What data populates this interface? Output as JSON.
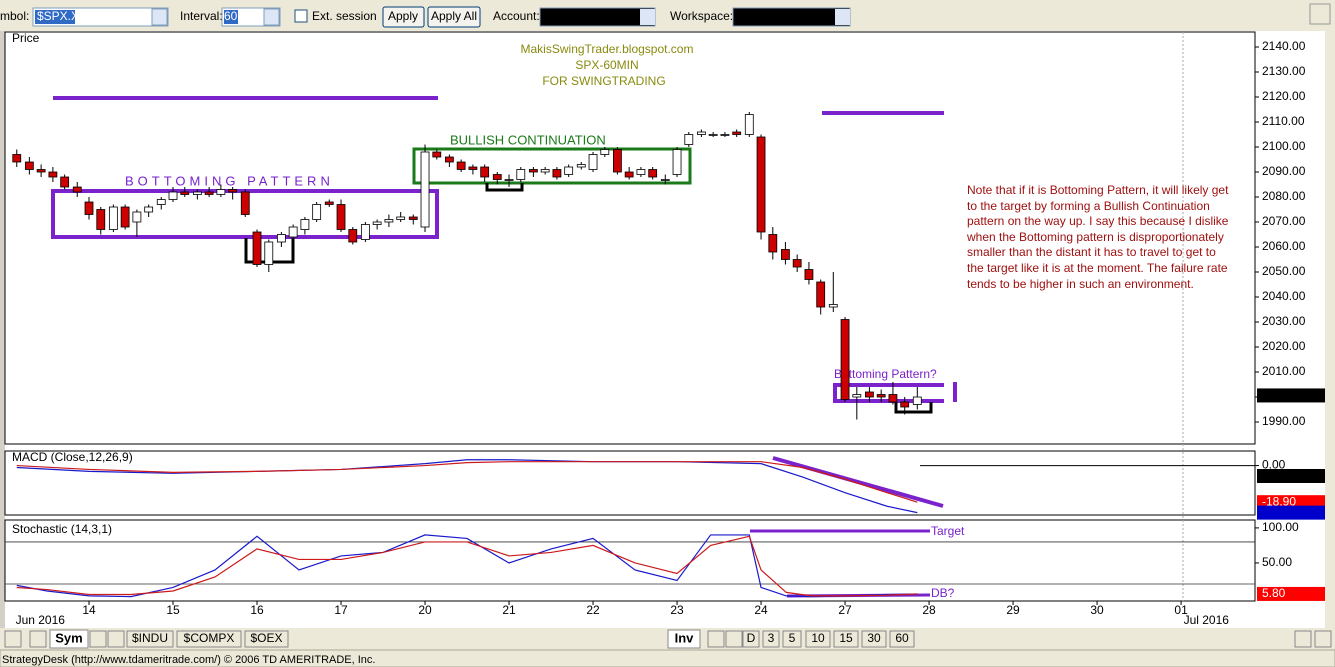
{
  "toolbar": {
    "symbol_label": "mbol:",
    "symbol": "$SPX.X",
    "interval_label": "Interval:",
    "interval": "60",
    "ext_session": "Ext. session",
    "apply": "Apply",
    "apply_all": "Apply All",
    "account_label": "Account:",
    "workspace_label": "Workspace:"
  },
  "chart_data": [
    {
      "type": "candlestick",
      "title": "Price",
      "x": [
        0.14,
        0.29,
        0.43,
        0.57,
        0.71,
        0.86,
        1,
        1.14,
        1.29,
        1.43,
        1.57,
        1.71,
        1.86,
        2,
        2.14,
        2.29,
        2.43,
        2.57,
        2.71,
        2.86,
        3,
        3.14,
        3.29,
        3.43,
        3.57,
        3.71,
        3.86,
        4,
        4.14,
        4.29,
        4.43,
        4.57,
        4.71,
        4.86,
        5,
        5.14,
        5.29,
        5.43,
        5.57,
        5.71,
        5.86,
        6,
        6.14,
        6.29,
        6.43,
        6.57,
        6.71,
        6.86,
        7,
        7.14,
        7.29,
        7.43,
        7.57,
        7.71,
        7.86,
        8,
        8.14,
        8.29,
        8.43,
        8.57,
        8.71,
        8.86,
        9,
        9.14,
        9.29,
        9.43,
        9.57,
        9.71,
        9.86,
        10,
        10.14,
        10.29,
        10.43,
        10.57,
        10.71,
        10.86
      ],
      "open": [
        2097,
        2094,
        2091,
        2090,
        2088,
        2084,
        2078,
        2075,
        2067,
        2076,
        2070,
        2074,
        2077,
        2079,
        2082,
        2081,
        2082,
        2081,
        2083,
        2082,
        2066,
        2053,
        2062,
        2064,
        2067,
        2071,
        2078,
        2077,
        2067,
        2063,
        2069,
        2070,
        2071,
        2072,
        2068,
        2098,
        2096,
        2094,
        2092,
        2092,
        2089,
        2087,
        2087,
        2091,
        2090,
        2091,
        2089,
        2092,
        2091,
        2097,
        2099,
        2090,
        2089,
        2091,
        2087,
        2089,
        2101,
        2105,
        2105,
        2105,
        2106,
        2105,
        2104,
        2065,
        2059,
        2055,
        2051,
        2046,
        2036,
        2031,
        2000,
        2002,
        2001,
        2001,
        1998,
        1997
      ],
      "high": [
        2099,
        2096,
        2093,
        2092,
        2089,
        2086,
        2080,
        2076,
        2077,
        2077,
        2075,
        2077,
        2080,
        2084,
        2084,
        2083,
        2084,
        2085,
        2084,
        2083,
        2067,
        2063,
        2066,
        2069,
        2072,
        2078,
        2079,
        2079,
        2068,
        2070,
        2071,
        2073,
        2074,
        2073,
        2101,
        2099,
        2097,
        2095,
        2093,
        2093,
        2090,
        2089,
        2092,
        2092,
        2092,
        2092,
        2093,
        2094,
        2098,
        2100,
        2100,
        2092,
        2092,
        2092,
        2089,
        2100,
        2106,
        2107,
        2106,
        2106,
        2107,
        2114,
        2105,
        2068,
        2062,
        2057,
        2054,
        2047,
        2050,
        2032,
        2004,
        2004,
        2003,
        2006,
        2000,
        2004
      ],
      "low": [
        2092,
        2089,
        2088,
        2086,
        2083,
        2080,
        2071,
        2065,
        2066,
        2067,
        2064,
        2072,
        2075,
        2078,
        2080,
        2079,
        2080,
        2080,
        2079,
        2072,
        2052,
        2050,
        2060,
        2062,
        2065,
        2070,
        2076,
        2066,
        2061,
        2062,
        2067,
        2068,
        2070,
        2069,
        2066,
        2095,
        2092,
        2090,
        2089,
        2086,
        2085,
        2084,
        2086,
        2088,
        2089,
        2087,
        2088,
        2091,
        2090,
        2096,
        2089,
        2087,
        2088,
        2087,
        2085,
        2088,
        2100,
        2104,
        2104,
        2104,
        2104,
        2104,
        2063,
        2055,
        2053,
        2050,
        2045,
        2033,
        2034,
        1998,
        1991,
        1998,
        1998,
        1997,
        1993,
        1995
      ],
      "close": [
        2094,
        2091,
        2090,
        2088,
        2084,
        2082,
        2073,
        2067,
        2076,
        2068,
        2074,
        2076,
        2079,
        2082,
        2081,
        2082,
        2081,
        2083,
        2082,
        2073,
        2053,
        2062,
        2065,
        2068,
        2071,
        2077,
        2077,
        2067,
        2062,
        2069,
        2070,
        2071,
        2072,
        2071,
        2098,
        2096,
        2094,
        2091,
        2091,
        2088,
        2087,
        2087,
        2091,
        2090,
        2091,
        2088,
        2092,
        2093,
        2097,
        2099,
        2090,
        2088,
        2091,
        2088,
        2087,
        2099,
        2105,
        2106,
        2105,
        2105,
        2105,
        2113,
        2066,
        2058,
        2055,
        2052,
        2047,
        2036,
        2037,
        1999,
        2001,
        2000,
        2000,
        1998,
        1996,
        2000
      ],
      "up_color": "#ffffff",
      "down_color": "#cc0000",
      "xlim": [
        0,
        14.88
      ],
      "xticks": [
        {
          "value": 1,
          "label": "14"
        },
        {
          "value": 2,
          "label": "15"
        },
        {
          "value": 3,
          "label": "16"
        },
        {
          "value": 4,
          "label": "17"
        },
        {
          "value": 5,
          "label": "20"
        },
        {
          "value": 6,
          "label": "21"
        },
        {
          "value": 7,
          "label": "22"
        },
        {
          "value": 8,
          "label": "23"
        },
        {
          "value": 9,
          "label": "24"
        },
        {
          "value": 10,
          "label": "27"
        },
        {
          "value": 11,
          "label": "28"
        },
        {
          "value": 12,
          "label": "29"
        },
        {
          "value": 13,
          "label": "30"
        },
        {
          "value": 14,
          "label": "01"
        }
      ],
      "month_labels": [
        {
          "value": 0.42,
          "label": "Jun 2016"
        },
        {
          "value": 14.3,
          "label": "Jul 2016"
        }
      ],
      "ylim": [
        1981.6,
        2145.6
      ],
      "yticks": [
        {
          "value": 1990,
          "label": "1990.00"
        },
        {
          "value": 2000,
          "label": "2000.00"
        },
        {
          "value": 2010,
          "label": "2010.00"
        },
        {
          "value": 2020,
          "label": "2020.00"
        },
        {
          "value": 2030,
          "label": "2030.00"
        },
        {
          "value": 2040,
          "label": "2040.00"
        },
        {
          "value": 2050,
          "label": "2050.00"
        },
        {
          "value": 2060,
          "label": "2060.00"
        },
        {
          "value": 2070,
          "label": "2070.00"
        },
        {
          "value": 2080,
          "label": "2080.00"
        },
        {
          "value": 2090,
          "label": "2090.00"
        },
        {
          "value": 2100,
          "label": "2100.00"
        },
        {
          "value": 2110,
          "label": "2110.00"
        },
        {
          "value": 2120,
          "label": "2120.00"
        },
        {
          "value": 2130,
          "label": "2130.00"
        },
        {
          "value": 2140,
          "label": "2140.00"
        }
      ],
      "badges": [
        {
          "value": 2000.62,
          "color": "#000000"
        }
      ],
      "annotations": {
        "watermark": [
          "MakisSwingTrader.blogspot.com",
          "SPX-60MIN",
          "FOR SWINGTRADING"
        ],
        "bullish": "BULLISH CONTINUATION",
        "bottoming": "BOTTOMING PATTERN",
        "bottoming_question": "Bottoming Pattern?",
        "note": "Note that if it is Bottoming Pattern, it will likely get to the target by forming a Bullish Continuation pattern on the way up. I say this because I dislike when the Bottoming pattern is disproportionately smaller than the distant it has to travel to get to the target like it is at the moment. The failure rate tends to be higher in such an environment."
      }
    },
    {
      "type": "line",
      "title": "MACD (Close,12,26,9)",
      "ylim": [
        -25,
        7
      ],
      "yticks": [
        {
          "value": 0,
          "label": "0.00"
        }
      ],
      "series": [
        {
          "name": "MACD",
          "color": "#1a1acc",
          "x": [
            0.14,
            1,
            2,
            3,
            4,
            5,
            5.5,
            6,
            7,
            8,
            9,
            9.5,
            10,
            10.5,
            10.86
          ],
          "values": [
            -1,
            -3,
            -4,
            -3,
            -2,
            1,
            3,
            3,
            2,
            2,
            1,
            -6,
            -14,
            -21,
            -24.29
          ]
        },
        {
          "name": "Signal",
          "color": "#cc1a1a",
          "x": [
            0.14,
            1,
            2,
            3,
            4,
            5,
            5.5,
            6,
            7,
            8,
            9,
            9.5,
            10,
            10.5,
            10.86
          ],
          "values": [
            0,
            -2,
            -3.5,
            -3,
            -2,
            0,
            1.5,
            2,
            2,
            2,
            2,
            -1,
            -7,
            -14,
            -18.9
          ]
        }
      ],
      "badges": [
        {
          "value": -5.38,
          "color": "#000000"
        },
        {
          "value": -18.9,
          "label": "-18.90",
          "color": "#ff0000"
        },
        {
          "value": -24.29,
          "color": "#0000cc"
        }
      ]
    },
    {
      "type": "line",
      "title": "Stochastic (14,3,1)",
      "ylim": [
        0,
        107
      ],
      "yticks": [
        {
          "value": 50,
          "label": "50.00"
        },
        {
          "value": 100,
          "label": "100.00"
        }
      ],
      "reference_lines": [
        20,
        80
      ],
      "series": [
        {
          "name": "%K",
          "color": "#1a1acc",
          "x": [
            0.14,
            0.5,
            1,
            1.5,
            2,
            2.5,
            3,
            3.5,
            4,
            4.5,
            5,
            5.5,
            6,
            6.5,
            7,
            7.5,
            8,
            8.4,
            8.86,
            9,
            9.3,
            9.6,
            10,
            10.5,
            10.86
          ],
          "values": [
            18,
            10,
            3,
            2,
            15,
            40,
            88,
            40,
            60,
            65,
            90,
            85,
            50,
            70,
            85,
            40,
            25,
            90,
            90,
            15,
            3,
            2,
            3,
            5,
            5.8
          ]
        },
        {
          "name": "%D",
          "color": "#cc1a1a",
          "x": [
            0.14,
            0.5,
            1,
            1.5,
            2,
            2.5,
            3,
            3.5,
            4,
            4.5,
            5,
            5.5,
            6,
            6.5,
            7,
            7.5,
            8,
            8.4,
            8.86,
            9,
            9.3,
            9.6,
            10,
            10.5,
            10.86
          ],
          "values": [
            15,
            12,
            5,
            5,
            10,
            30,
            70,
            55,
            55,
            65,
            80,
            80,
            60,
            65,
            75,
            50,
            35,
            75,
            88,
            40,
            8,
            3,
            3,
            4,
            5.8
          ]
        }
      ],
      "badges": [
        {
          "value": 5.8,
          "label": "5.80",
          "color": "#ff0000"
        }
      ],
      "annotations": {
        "target": "Target",
        "db": "DB?"
      }
    }
  ],
  "bottom_bar": {
    "sym": "Sym",
    "symbols": [
      "$INDU",
      "$COMPX",
      "$OEX"
    ],
    "inv": "Inv",
    "intervals": [
      "D",
      "3",
      "5",
      "10",
      "15",
      "30",
      "60"
    ]
  },
  "status": "StrategyDesk (http://www.tdameritrade.com/) © 2006 TD AMERITRADE, Inc."
}
